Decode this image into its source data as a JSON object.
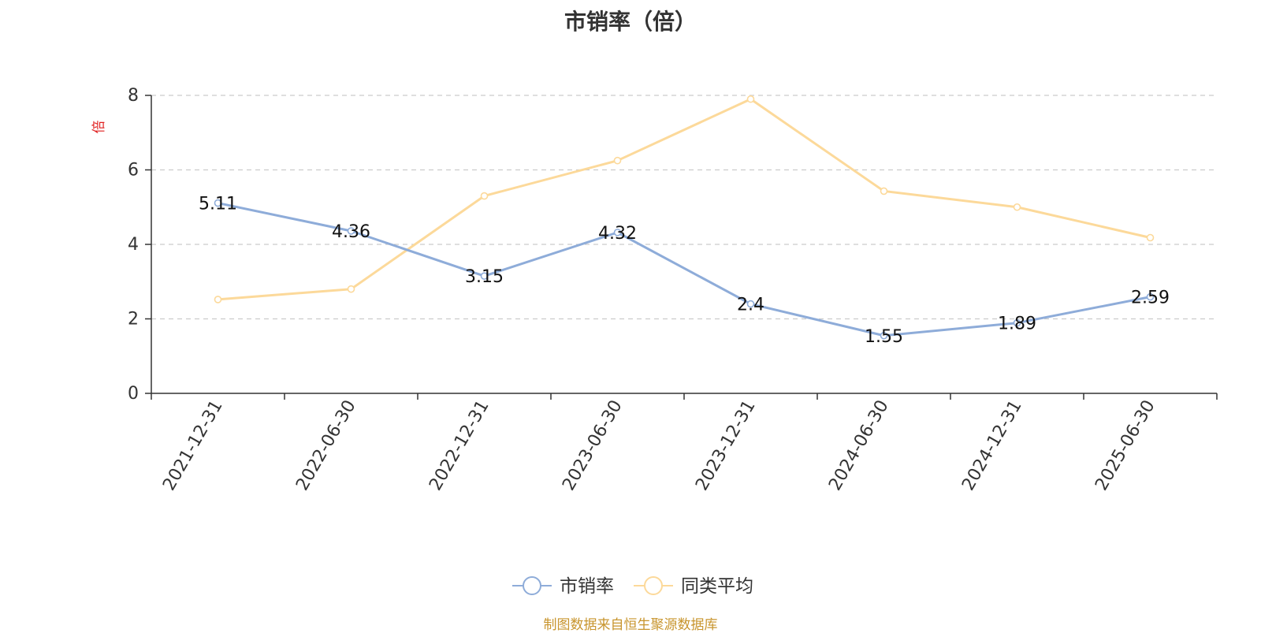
{
  "chart_data": {
    "type": "line",
    "title": "市销率（倍）",
    "ylabel": "倍",
    "categories": [
      "2021-12-31",
      "2022-06-30",
      "2022-12-31",
      "2023-06-30",
      "2023-12-31",
      "2024-06-30",
      "2024-12-31",
      "2025-06-30"
    ],
    "series": [
      {
        "name": "市销率",
        "color": "#8eacd9",
        "values": [
          5.11,
          4.36,
          3.15,
          4.32,
          2.4,
          1.55,
          1.89,
          2.59
        ],
        "data_labels": [
          "5.11",
          "4.36",
          "3.15",
          "4.32",
          "2.4",
          "1.55",
          "1.89",
          "2.59"
        ]
      },
      {
        "name": "同类平均",
        "color": "#fcd99a",
        "values": [
          2.52,
          2.8,
          5.3,
          6.25,
          7.9,
          5.43,
          5.0,
          4.18
        ]
      }
    ],
    "ylim": [
      0,
      8
    ],
    "yticks": [
      "0",
      "2",
      "4",
      "6",
      "8"
    ],
    "grid": true,
    "legend_position": "bottom-center"
  },
  "source_note": "制图数据来自恒生聚源数据库"
}
